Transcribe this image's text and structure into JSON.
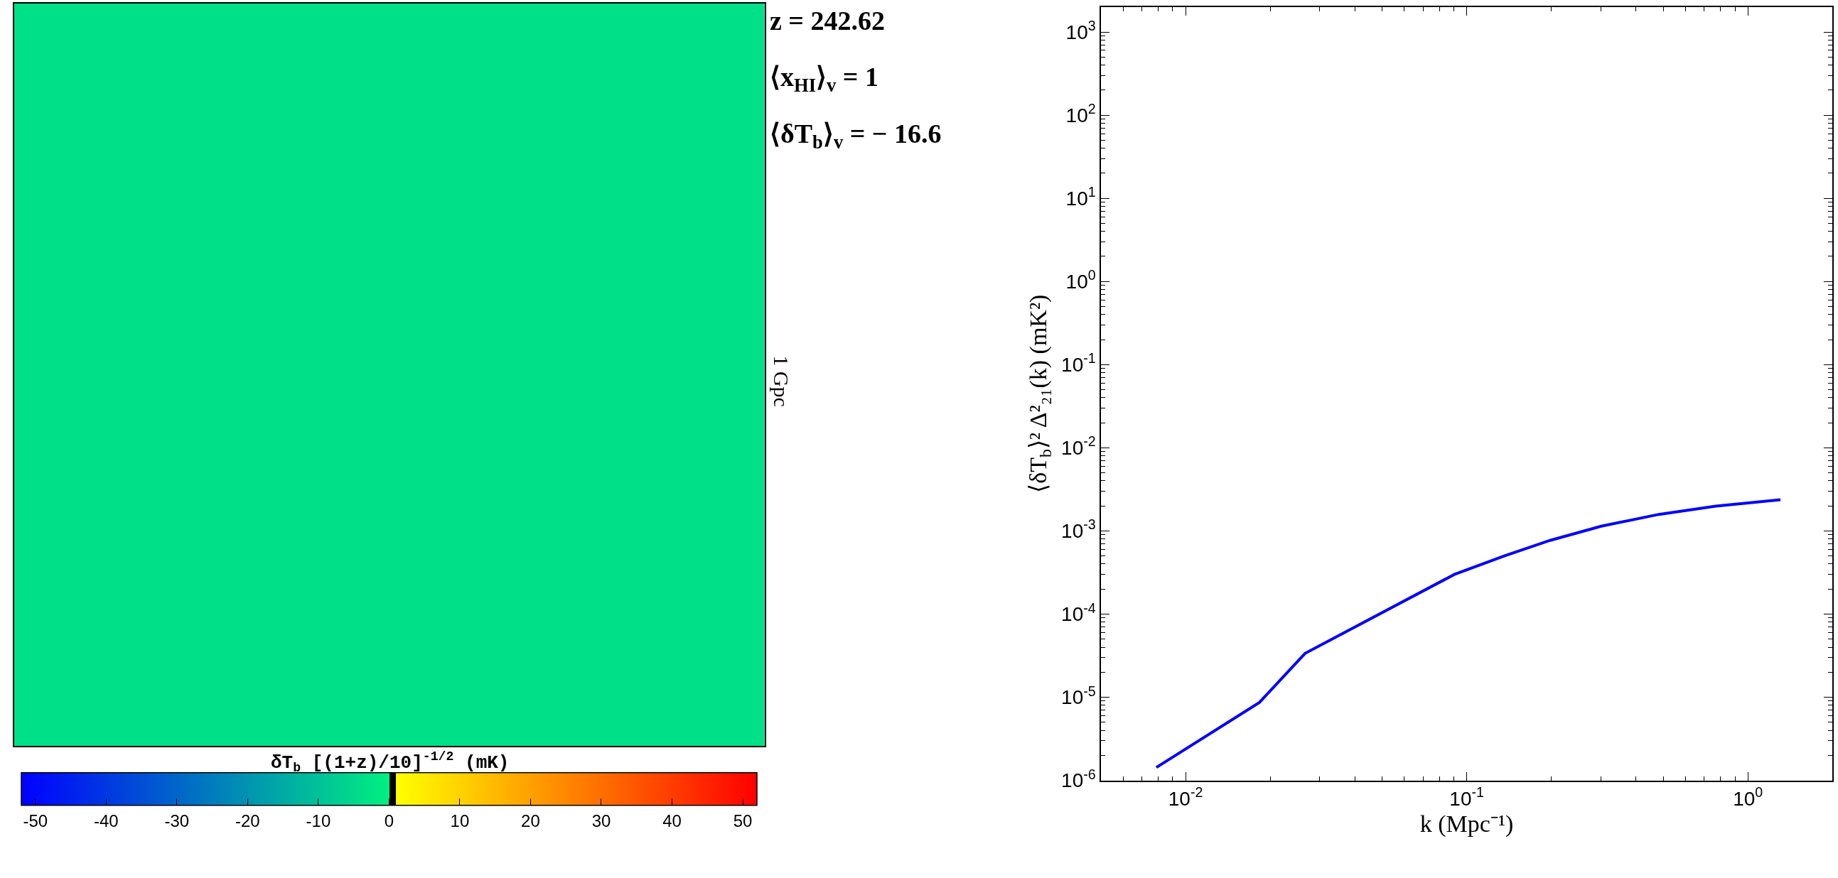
{
  "chart_data": [
    {
      "type": "heatmap",
      "categories": [
        null
      ],
      "y_categories": [
        null
      ],
      "cells": [
        [
          -3.4
        ]
      ],
      "clabel": "δT$_{b}$ [(1+z)/10]$^{-1/2}$ (mK)",
      "clim": [
        -52,
        52
      ],
      "cticks": [
        -50,
        -40,
        -30,
        -20,
        -10,
        0,
        10,
        20,
        30,
        40,
        50
      ],
      "colors": [
        "#0000ff",
        "#00f080",
        "#000000",
        "#ffff00",
        "#ff0000"
      ],
      "annotations": [
        "z = 242.62",
        "⟨x$_{HI}$⟩$_{v}$ = 1",
        "⟨δT$_{b}$⟩$_{v}$ = − 16.6",
        "1 Gpc"
      ]
    },
    {
      "type": "line",
      "xlabel": "k (Mpc⁻¹)",
      "ylabel": "⟨δT$_{b}$⟩² Δ²₂₁(k) (mK²)",
      "log": "xy",
      "xlim": [
        0.005,
        2
      ],
      "ylim": [
        1e-06,
        2000
      ],
      "xticks": [
        {
          "value": 0.01,
          "label": "10$^{-2}$"
        },
        {
          "value": 0.1,
          "label": "10$^{-1}$"
        },
        {
          "value": 1,
          "label": "10$^{0}$"
        }
      ],
      "yticks": [
        {
          "value": 1e-06,
          "label": "10$^{-6}$"
        },
        {
          "value": 1e-05,
          "label": "10$^{-5}$"
        },
        {
          "value": 0.0001,
          "label": "10$^{-4}$"
        },
        {
          "value": 0.001,
          "label": "10$^{-3}$"
        },
        {
          "value": 0.01,
          "label": "10$^{-2}$"
        },
        {
          "value": 0.1,
          "label": "10$^{-1}$"
        },
        {
          "value": 1,
          "label": "10$^{0}$"
        },
        {
          "value": 10,
          "label": "10$^{1}$"
        },
        {
          "value": 100,
          "label": "10$^{2}$"
        },
        {
          "value": 1000,
          "label": "10$^{3}$"
        }
      ],
      "series": [
        {
          "color": "#0000ff",
          "x": [
            0.00787,
            0.0183,
            0.0266,
            0.0904,
            0.136,
            0.198,
            0.301,
            0.482,
            0.769,
            1.306
          ],
          "values": [
            1.43e-06,
            8.65e-06,
            3.37e-05,
            0.0003,
            0.0005,
            0.00077,
            0.00114,
            0.00158,
            0.00199,
            0.00237
          ]
        }
      ]
    }
  ]
}
